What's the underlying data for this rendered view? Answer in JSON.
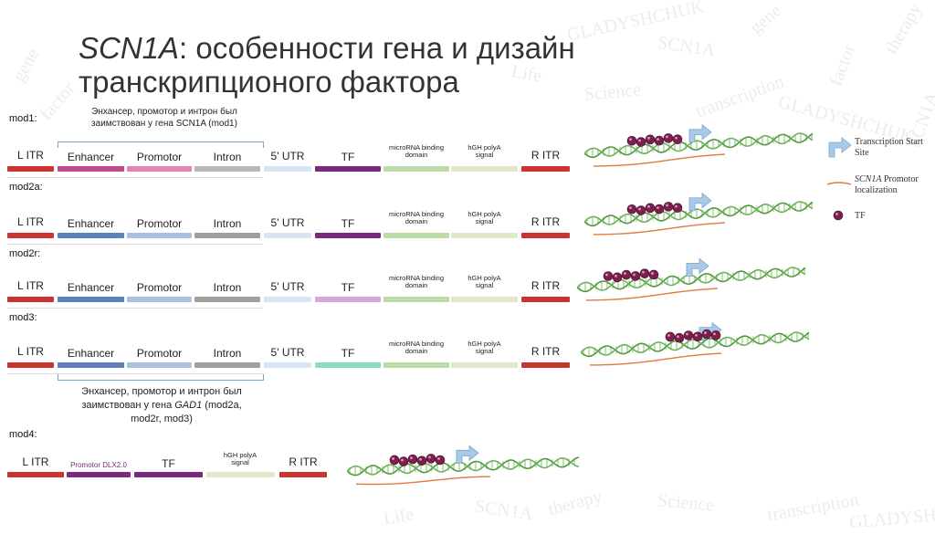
{
  "title": {
    "gene": "SCN1A",
    "rest": ": особенности гена и дизайн транскрипционого фактора"
  },
  "watermark_words": [
    "GLADYSHCHUK",
    "SCN1A",
    "gene",
    "factor",
    "therapy",
    "Life",
    "Science",
    "transcription"
  ],
  "colors": {
    "itr": "#cc3333",
    "enhancer_mod1": "#c04a8c",
    "promotor_mod1": "#e582b5",
    "intron_mod1": "#b7b7b7",
    "utr": "#d7e4f4",
    "tf_dark": "#7a2a7e",
    "tf_light": "#d9a6d9",
    "tf_teal": "#8fdcc5",
    "mirna": "#bcdca7",
    "polya": "#dde9c8",
    "enhancer_blue": "#5a82be",
    "promotor_blue": "#a9c2e3",
    "intron_gray": "#a0a0a0",
    "dna": "#4f9a3c",
    "arrow": "#a9c9e8",
    "orange": "#e07a40",
    "bead": "#7a1f4e"
  },
  "mod1_note": "Энхансер, промотор и интрон был заимствован у гена SCN1A (mod1)",
  "gad1_note": {
    "line1": "Энхансер, промотор и интрон был",
    "line2": "заимствован у гена ",
    "gene": "GAD1",
    "line2_end": " (mod2a,",
    "line3": "mod2r, mod3)"
  },
  "rows": [
    {
      "name": "mod1:",
      "l_itr": "L ITR",
      "enhancer": "Enhancer",
      "promotor": "Promotor",
      "intron": "Intron",
      "utr": "5' UTR",
      "tf": "TF",
      "mirna": "microRNA binding domain",
      "polya": "hGH polyA signal",
      "r_itr": "R ITR"
    },
    {
      "name": "mod2a:",
      "l_itr": "L ITR",
      "enhancer": "Enhancer",
      "promotor": "Promotor",
      "intron": "Intron",
      "utr": "5' UTR",
      "tf": "TF",
      "mirna": "microRNA binding domain",
      "polya": "hGH polyA signal",
      "r_itr": "R ITR"
    },
    {
      "name": "mod2r:",
      "l_itr": "L ITR",
      "enhancer": "Enhancer",
      "promotor": "Promotor",
      "intron": "Intron",
      "utr": "5' UTR",
      "tf": "TF",
      "mirna": "microRNA binding domain",
      "polya": "hGH polyA signal",
      "r_itr": "R ITR"
    },
    {
      "name": "mod3:",
      "l_itr": "L ITR",
      "enhancer": "Enhancer",
      "promotor": "Promotor",
      "intron": "Intron",
      "utr": "5' UTR",
      "tf": "TF",
      "mirna": "microRNA binding domain",
      "polya": "hGH polyA signal",
      "r_itr": "R ITR"
    }
  ],
  "mod4": {
    "name": "mod4:",
    "l_itr": "L ITR",
    "promotor": "Promotor DLX2.0",
    "tf": "TF",
    "polya": "hGH polyA signal",
    "r_itr": "R ITR"
  },
  "legend": {
    "tss_line1": "Transcription Start",
    "tss_line2": "Site",
    "promotor_gene": "SCN1A",
    "promotor_rest": " Promotor",
    "promotor_line2": "localization",
    "tf": "TF"
  }
}
